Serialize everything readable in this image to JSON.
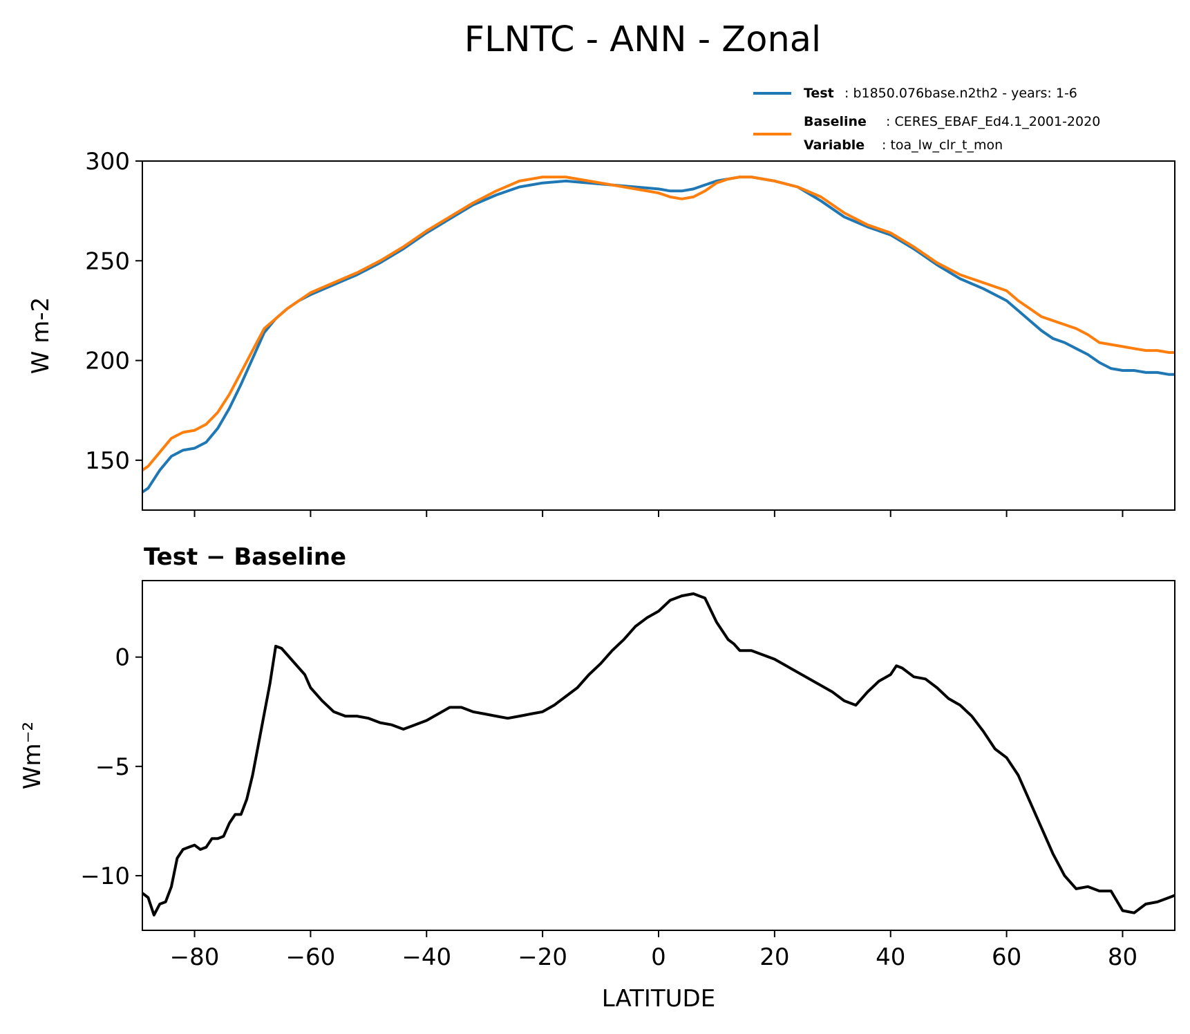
{
  "title": "FLNTC - ANN - Zonal",
  "colors": {
    "test": "#1f77b4",
    "baseline": "#ff7f0e",
    "diff": "#000000"
  },
  "legend": {
    "position": "top-right, above plot",
    "test_key": "Test",
    "test_text": ": b1850.076base.n2th2 - years: 1-6",
    "baseline_key": "Baseline",
    "baseline_text": ": CERES_EBAF_Ed4.1_2001-2020",
    "variable_key": "Variable",
    "variable_text": ": toa_lw_clr_t_mon"
  },
  "chart_data": [
    {
      "type": "line",
      "title": "",
      "xlabel": "",
      "ylabel": "W m-2",
      "xlim": [
        -89,
        89
      ],
      "ylim": [
        125,
        300
      ],
      "xticks": [
        -80,
        -60,
        -40,
        -20,
        0,
        20,
        40,
        60,
        80
      ],
      "yticks": [
        150,
        200,
        250,
        300
      ],
      "ytick_labels": [
        "150",
        "200",
        "250",
        "300"
      ],
      "show_x_tick_labels": false,
      "grid": false,
      "x": [
        -89,
        -88,
        -86,
        -84,
        -82,
        -80,
        -78,
        -76,
        -74,
        -72,
        -70,
        -68,
        -66,
        -64,
        -62,
        -60,
        -56,
        -52,
        -48,
        -44,
        -40,
        -36,
        -32,
        -28,
        -24,
        -20,
        -16,
        -12,
        -8,
        -4,
        0,
        2,
        4,
        6,
        8,
        10,
        12,
        14,
        16,
        18,
        20,
        24,
        28,
        32,
        36,
        40,
        44,
        48,
        52,
        56,
        60,
        62,
        64,
        66,
        68,
        70,
        72,
        74,
        76,
        78,
        80,
        82,
        84,
        86,
        88,
        89
      ],
      "series": [
        {
          "name": "Test",
          "values": [
            134,
            136,
            145,
            152,
            155,
            156,
            159,
            166,
            176,
            188,
            201,
            214,
            221,
            226,
            230,
            233,
            238,
            243,
            249,
            256,
            264,
            271,
            278,
            283,
            287,
            289,
            290,
            289,
            288,
            287,
            286,
            285,
            285,
            286,
            288,
            290,
            291,
            292,
            292,
            291,
            290,
            287,
            280,
            272,
            267,
            263,
            256,
            248,
            241,
            236,
            230,
            225,
            220,
            215,
            211,
            209,
            206,
            203,
            199,
            196,
            195,
            195,
            194,
            194,
            193,
            193
          ]
        },
        {
          "name": "Baseline",
          "values": [
            145,
            147,
            154,
            161,
            164,
            165,
            168,
            174,
            183,
            194,
            205,
            216,
            221,
            226,
            230,
            234,
            239,
            244,
            250,
            257,
            265,
            272,
            279,
            285,
            290,
            292,
            292,
            290,
            288,
            286,
            284,
            282,
            281,
            282,
            285,
            289,
            291,
            292,
            292,
            291,
            290,
            287,
            282,
            274,
            268,
            264,
            257,
            249,
            243,
            239,
            235,
            230,
            226,
            222,
            220,
            218,
            216,
            213,
            209,
            208,
            207,
            206,
            205,
            205,
            204,
            204
          ]
        }
      ]
    },
    {
      "type": "line",
      "title": "Test − Baseline",
      "xlabel": "LATITUDE",
      "ylabel": "Wm⁻²",
      "xlim": [
        -89,
        89
      ],
      "ylim": [
        -12.5,
        3.5
      ],
      "xticks": [
        -80,
        -60,
        -40,
        -20,
        0,
        20,
        40,
        60,
        80
      ],
      "xtick_labels": [
        "−80",
        "−60",
        "−40",
        "−20",
        "0",
        "20",
        "40",
        "60",
        "80"
      ],
      "yticks": [
        -10,
        -5,
        0
      ],
      "ytick_labels": [
        "−10",
        "−5",
        "0"
      ],
      "grid": false,
      "x": [
        -89,
        -88,
        -87,
        -86,
        -85,
        -84,
        -83,
        -82,
        -81,
        -80,
        -79,
        -78,
        -77,
        -76,
        -75,
        -74,
        -73,
        -72,
        -71,
        -70,
        -69,
        -68,
        -67,
        -66,
        -65,
        -64,
        -63,
        -62,
        -61,
        -60,
        -58,
        -56,
        -54,
        -52,
        -50,
        -48,
        -46,
        -44,
        -42,
        -40,
        -38,
        -36,
        -34,
        -32,
        -30,
        -28,
        -26,
        -24,
        -22,
        -20,
        -18,
        -16,
        -14,
        -12,
        -10,
        -8,
        -6,
        -4,
        -2,
        0,
        2,
        4,
        6,
        8,
        10,
        12,
        13,
        14,
        16,
        18,
        20,
        22,
        24,
        26,
        28,
        30,
        32,
        34,
        36,
        38,
        40,
        41,
        42,
        44,
        46,
        48,
        50,
        52,
        54,
        56,
        58,
        60,
        62,
        64,
        66,
        68,
        70,
        72,
        74,
        76,
        78,
        80,
        82,
        84,
        86,
        88,
        89
      ],
      "series": [
        {
          "name": "",
          "values": [
            -10.8,
            -11.0,
            -11.8,
            -11.3,
            -11.2,
            -10.5,
            -9.2,
            -8.8,
            -8.7,
            -8.6,
            -8.8,
            -8.7,
            -8.3,
            -8.3,
            -8.2,
            -7.6,
            -7.2,
            -7.2,
            -6.5,
            -5.4,
            -4.0,
            -2.6,
            -1.2,
            0.5,
            0.4,
            0.1,
            -0.2,
            -0.5,
            -0.8,
            -1.4,
            -2.0,
            -2.5,
            -2.7,
            -2.7,
            -2.8,
            -3.0,
            -3.1,
            -3.3,
            -3.1,
            -2.9,
            -2.6,
            -2.3,
            -2.3,
            -2.5,
            -2.6,
            -2.7,
            -2.8,
            -2.7,
            -2.6,
            -2.5,
            -2.2,
            -1.8,
            -1.4,
            -0.8,
            -0.3,
            0.3,
            0.8,
            1.4,
            1.8,
            2.1,
            2.6,
            2.8,
            2.9,
            2.7,
            1.6,
            0.8,
            0.6,
            0.3,
            0.3,
            0.1,
            -0.1,
            -0.4,
            -0.7,
            -1.0,
            -1.3,
            -1.6,
            -2.0,
            -2.2,
            -1.6,
            -1.1,
            -0.8,
            -0.4,
            -0.5,
            -0.9,
            -1.0,
            -1.4,
            -1.9,
            -2.2,
            -2.7,
            -3.4,
            -4.2,
            -4.6,
            -5.4,
            -6.6,
            -7.8,
            -9.0,
            -10.0,
            -10.6,
            -10.5,
            -10.7,
            -10.7,
            -11.6,
            -11.7,
            -11.3,
            -11.2,
            -11.0,
            -10.9
          ]
        }
      ]
    }
  ]
}
